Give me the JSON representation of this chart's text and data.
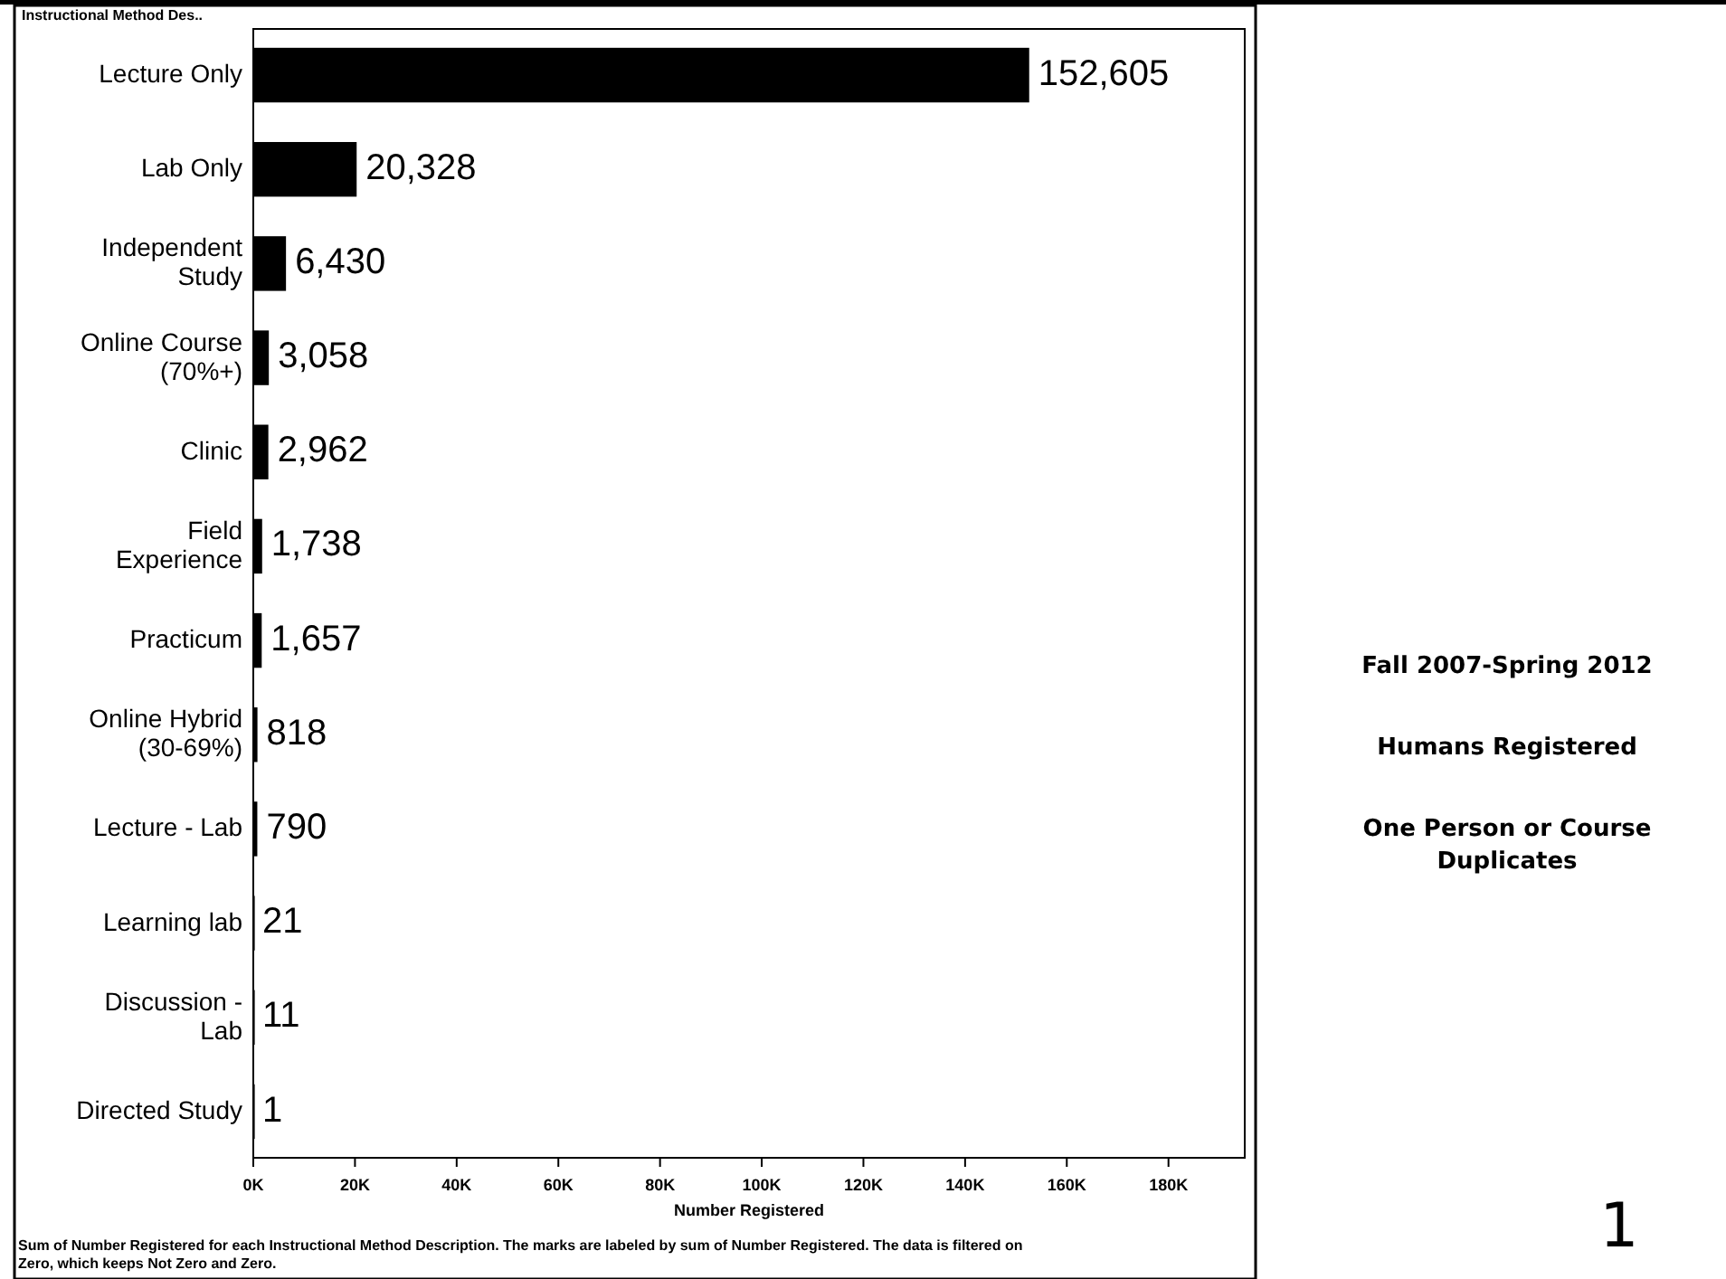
{
  "chart_data": {
    "type": "bar",
    "orientation": "horizontal",
    "ylabel": "Instructional Method Des..",
    "xlabel": "Number Registered",
    "categories": [
      "Lecture Only",
      "Lab Only",
      "Independent\nStudy",
      "Online Course\n(70%+)",
      "Clinic",
      "Field\nExperience",
      "Practicum",
      "Online Hybrid\n(30-69%)",
      "Lecture - Lab",
      "Learning lab",
      "Discussion -\nLab",
      "Directed Study"
    ],
    "values": [
      152605,
      20328,
      6430,
      3058,
      2962,
      1738,
      1657,
      818,
      790,
      21,
      11,
      1
    ],
    "color": "#000000",
    "value_labels": [
      "152,605",
      "20,328",
      "6,430",
      "3,058",
      "2,962",
      "1,738",
      "1,657",
      "818",
      "790",
      "21",
      "11",
      "1"
    ],
    "xlim": [
      0,
      195000
    ],
    "xticks": [
      {
        "value": 0,
        "label": "0K"
      },
      {
        "value": 20000,
        "label": "20K"
      },
      {
        "value": 40000,
        "label": "40K"
      },
      {
        "value": 60000,
        "label": "60K"
      },
      {
        "value": 80000,
        "label": "80K"
      },
      {
        "value": 100000,
        "label": "100K"
      },
      {
        "value": 120000,
        "label": "120K"
      },
      {
        "value": 140000,
        "label": "140K"
      },
      {
        "value": 160000,
        "label": "160K"
      },
      {
        "value": 180000,
        "label": "180K"
      }
    ],
    "annotations": [
      "Fall 2007-Spring 2012",
      "Humans Registered",
      "One Person or Course\nDuplicates",
      "1",
      "Sum of Number Registered for each Instructional Method Description.  The marks are labeled by sum of Number Registered. The data is filtered on\nZero, which keeps Not Zero and Zero."
    ]
  }
}
